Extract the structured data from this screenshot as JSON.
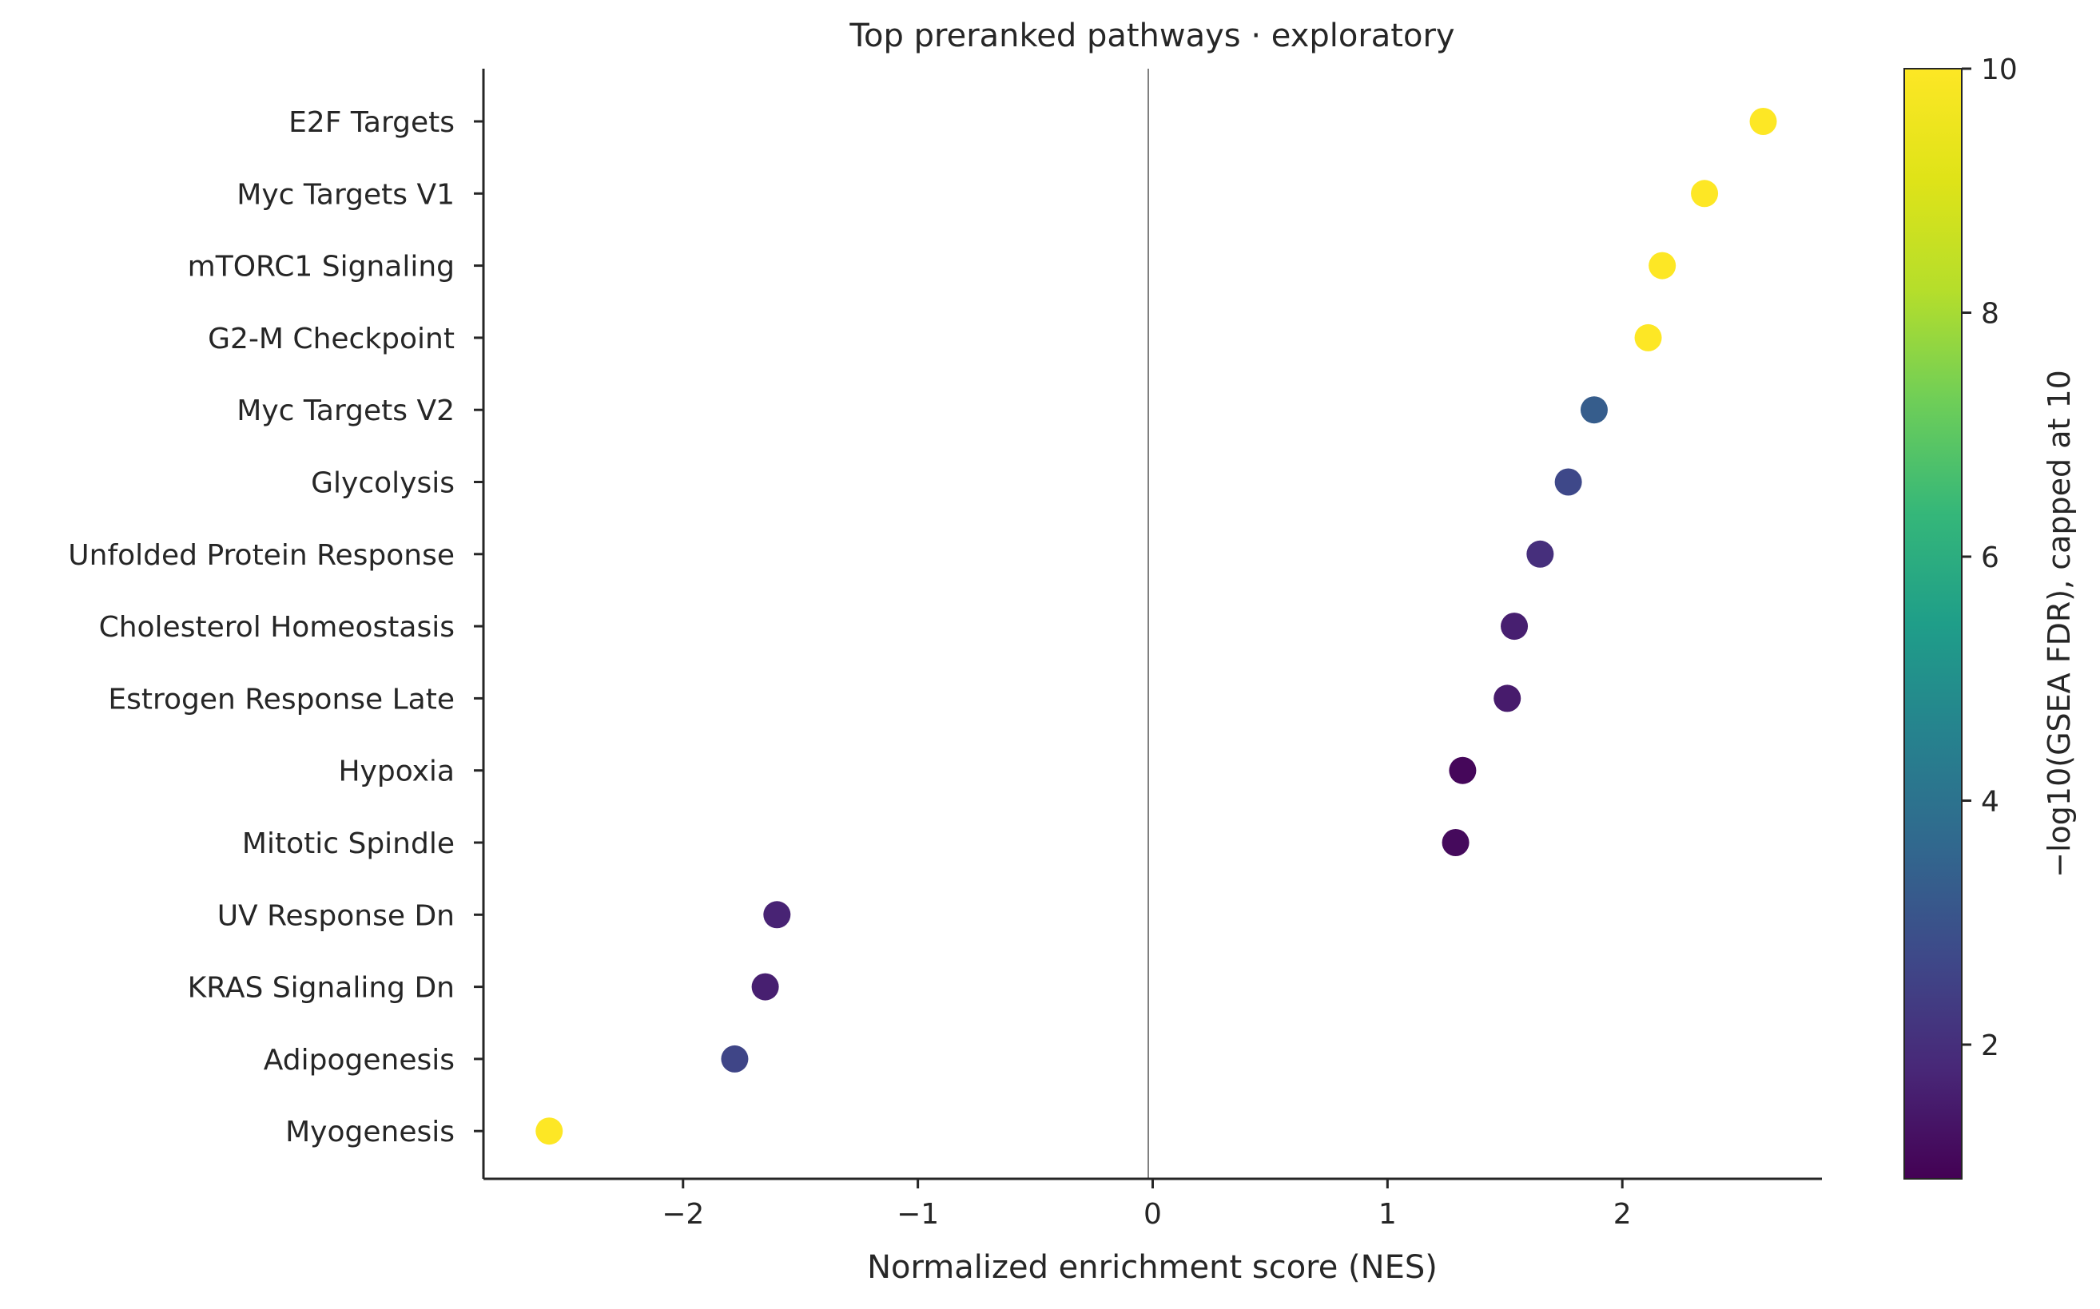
{
  "chart_data": {
    "type": "scatter",
    "title": "Top preranked pathways · exploratory",
    "xlabel": "Normalized enrichment score (NES)",
    "ylabel": "",
    "xlim": [
      -2.85,
      2.85
    ],
    "xticks": [
      -2,
      -1,
      0,
      1,
      2
    ],
    "xtick_labels": [
      "−2",
      "−1",
      "0",
      "1",
      "2"
    ],
    "zero_line": true,
    "grid": false,
    "points": [
      {
        "pathway": "E2F Targets",
        "nes": 2.6,
        "neg_log10_fdr": 10
      },
      {
        "pathway": "Myc Targets V1",
        "nes": 2.35,
        "neg_log10_fdr": 10
      },
      {
        "pathway": "mTORC1 Signaling",
        "nes": 2.17,
        "neg_log10_fdr": 10
      },
      {
        "pathway": "G2-M Checkpoint",
        "nes": 2.11,
        "neg_log10_fdr": 10
      },
      {
        "pathway": "Myc Targets V2",
        "nes": 1.88,
        "neg_log10_fdr": 3.3
      },
      {
        "pathway": "Glycolysis",
        "nes": 1.77,
        "neg_log10_fdr": 2.7
      },
      {
        "pathway": "Unfolded Protein Response",
        "nes": 1.65,
        "neg_log10_fdr": 2.0
      },
      {
        "pathway": "Cholesterol Homeostasis",
        "nes": 1.54,
        "neg_log10_fdr": 1.6
      },
      {
        "pathway": "Estrogen Response Late",
        "nes": 1.51,
        "neg_log10_fdr": 1.5
      },
      {
        "pathway": "Hypoxia",
        "nes": 1.32,
        "neg_log10_fdr": 1.05
      },
      {
        "pathway": "Mitotic Spindle",
        "nes": 1.29,
        "neg_log10_fdr": 1.1
      },
      {
        "pathway": "UV Response Dn",
        "nes": -1.6,
        "neg_log10_fdr": 1.7
      },
      {
        "pathway": "KRAS Signaling Dn",
        "nes": -1.65,
        "neg_log10_fdr": 1.6
      },
      {
        "pathway": "Adipogenesis",
        "nes": -1.78,
        "neg_log10_fdr": 2.6
      },
      {
        "pathway": "Myogenesis",
        "nes": -2.57,
        "neg_log10_fdr": 10
      }
    ],
    "colorbar": {
      "label": "−log10(GSEA FDR), capped at 10",
      "colormap": "viridis",
      "range": [
        0.9,
        10
      ],
      "ticks": [
        2,
        4,
        6,
        8,
        10
      ],
      "tick_labels": [
        "2",
        "4",
        "6",
        "8",
        "10"
      ]
    }
  }
}
